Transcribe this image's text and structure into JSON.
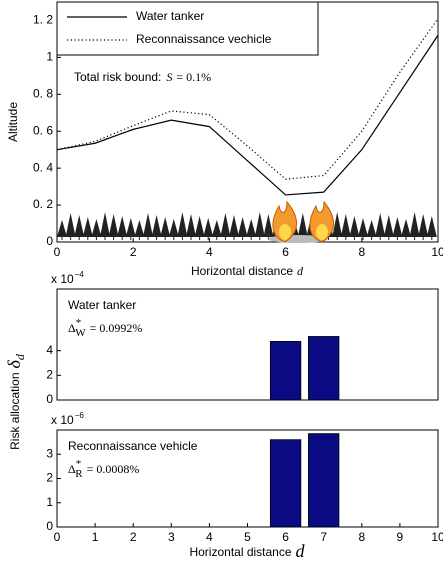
{
  "chart_data": [
    {
      "type": "line",
      "xlabel": [
        "Horizontal distance",
        "d"
      ],
      "ylabel": "Altitude",
      "annotation": [
        "Total risk bound:",
        "S",
        "= 0.1%"
      ],
      "x": [
        0,
        1,
        2,
        3,
        4,
        5,
        6,
        7,
        8,
        9,
        10
      ],
      "series": [
        {
          "name": "Water tanker",
          "color": "#000000",
          "dash": "solid",
          "values": [
            0.5,
            0.535,
            0.61,
            0.66,
            0.625,
            0.44,
            0.255,
            0.27,
            0.5,
            0.81,
            1.12
          ]
        },
        {
          "name": "Reconnaissance vechicle",
          "color": "#000000",
          "dash": "dotted",
          "values": [
            0.5,
            0.545,
            0.63,
            0.71,
            0.69,
            0.52,
            0.34,
            0.36,
            0.6,
            0.92,
            1.21
          ]
        }
      ],
      "xlim": [
        0,
        10
      ],
      "xticks": [
        0,
        2,
        4,
        6,
        8,
        10
      ],
      "ylim": [
        0,
        1.3
      ],
      "yticks": [
        0,
        {
          "value": 0.2,
          "label": "0. 2"
        },
        {
          "value": 0.4,
          "label": "0. 4"
        },
        {
          "value": 0.6,
          "label": "0. 6"
        },
        {
          "value": 0.8,
          "label": "0. 8"
        },
        1,
        {
          "value": 1.2,
          "label": "1. 2"
        }
      ],
      "legend": "top-left"
    },
    {
      "type": "bar",
      "ylabel": [
        "Risk allocation",
        "δ",
        "d"
      ],
      "exponent": [
        "x 10",
        "−4"
      ],
      "annotation": [
        "Water tanker",
        "Δ",
        "*",
        "W",
        "= 0.0992%"
      ],
      "x": [
        0,
        1,
        2,
        3,
        4,
        5,
        6,
        7,
        8,
        9,
        10
      ],
      "values": [
        0,
        0,
        0,
        0,
        0,
        0,
        4.75,
        5.15,
        0,
        0,
        0
      ],
      "color": "#0a0a82",
      "xlim": [
        0,
        10
      ],
      "ylim": [
        0,
        9
      ],
      "yticks": [
        0,
        2,
        4
      ]
    },
    {
      "type": "bar",
      "xlabel": [
        "Horizontal distance",
        "d"
      ],
      "exponent": [
        "x 10",
        "−6"
      ],
      "annotation": [
        "Reconnaissance vehicle",
        "Δ",
        "*",
        "R",
        "= 0.0008%"
      ],
      "x": [
        0,
        1,
        2,
        3,
        4,
        5,
        6,
        7,
        8,
        9,
        10
      ],
      "values": [
        0,
        0,
        0,
        0,
        0,
        0,
        3.6,
        3.85,
        0,
        0,
        0
      ],
      "color": "#0a0a82",
      "xlim": [
        0,
        10
      ],
      "xticks": [
        0,
        1,
        2,
        3,
        4,
        5,
        6,
        7,
        8,
        9,
        10
      ],
      "ylim": [
        0,
        4
      ],
      "yticks": [
        0,
        1,
        2,
        3
      ]
    }
  ]
}
